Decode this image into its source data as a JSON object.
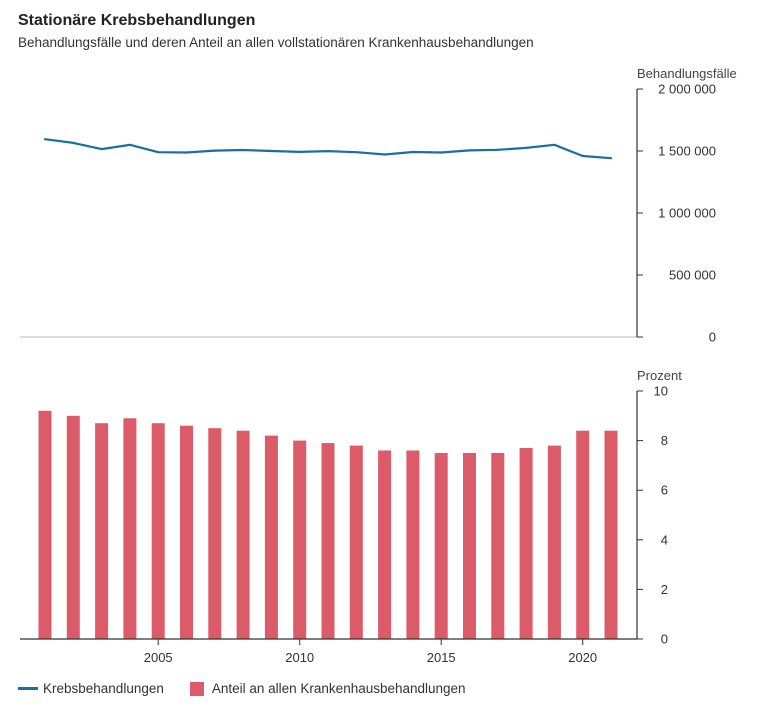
{
  "title": "Stationäre Krebsbehandlungen",
  "subtitle": "Behandlungsfälle und deren Anteil an allen vollstationären Krankenhausbehandlungen",
  "colors": {
    "line": "#1a6fa0",
    "bar": "#dc5b68",
    "axis": "#333333"
  },
  "legend": {
    "line_label": "Krebsbehandlungen",
    "bar_label": "Anteil an allen Krankenhausbehandlungen"
  },
  "chart_data": [
    {
      "type": "line",
      "ylabel": "Behandlungsfälle",
      "ylim": [
        0,
        2000000
      ],
      "yticks": [
        "0",
        "500 000",
        "1 000 000",
        "1 500 000",
        "2 000 000"
      ],
      "x": [
        2001,
        2002,
        2003,
        2004,
        2005,
        2006,
        2007,
        2008,
        2009,
        2010,
        2011,
        2012,
        2013,
        2014,
        2015,
        2016,
        2017,
        2018,
        2019,
        2020,
        2021
      ],
      "series": [
        {
          "name": "Krebsbehandlungen",
          "values": [
            1595000,
            1565000,
            1515000,
            1550000,
            1490000,
            1488000,
            1503000,
            1508000,
            1500000,
            1493000,
            1499000,
            1490000,
            1472000,
            1492000,
            1488000,
            1505000,
            1510000,
            1525000,
            1550000,
            1460000,
            1442000
          ]
        }
      ]
    },
    {
      "type": "bar",
      "ylabel": "Prozent",
      "ylim": [
        0,
        10
      ],
      "yticks": [
        "0",
        "2",
        "4",
        "6",
        "8",
        "10"
      ],
      "xticks": [
        "2005",
        "2010",
        "2015",
        "2020"
      ],
      "x": [
        2001,
        2002,
        2003,
        2004,
        2005,
        2006,
        2007,
        2008,
        2009,
        2010,
        2011,
        2012,
        2013,
        2014,
        2015,
        2016,
        2017,
        2018,
        2019,
        2020,
        2021
      ],
      "series": [
        {
          "name": "Anteil an allen Krankenhausbehandlungen",
          "values": [
            9.2,
            9.0,
            8.7,
            8.9,
            8.7,
            8.6,
            8.5,
            8.4,
            8.2,
            8.0,
            7.9,
            7.8,
            7.6,
            7.6,
            7.5,
            7.5,
            7.5,
            7.7,
            7.8,
            8.4,
            8.4
          ]
        }
      ]
    }
  ]
}
